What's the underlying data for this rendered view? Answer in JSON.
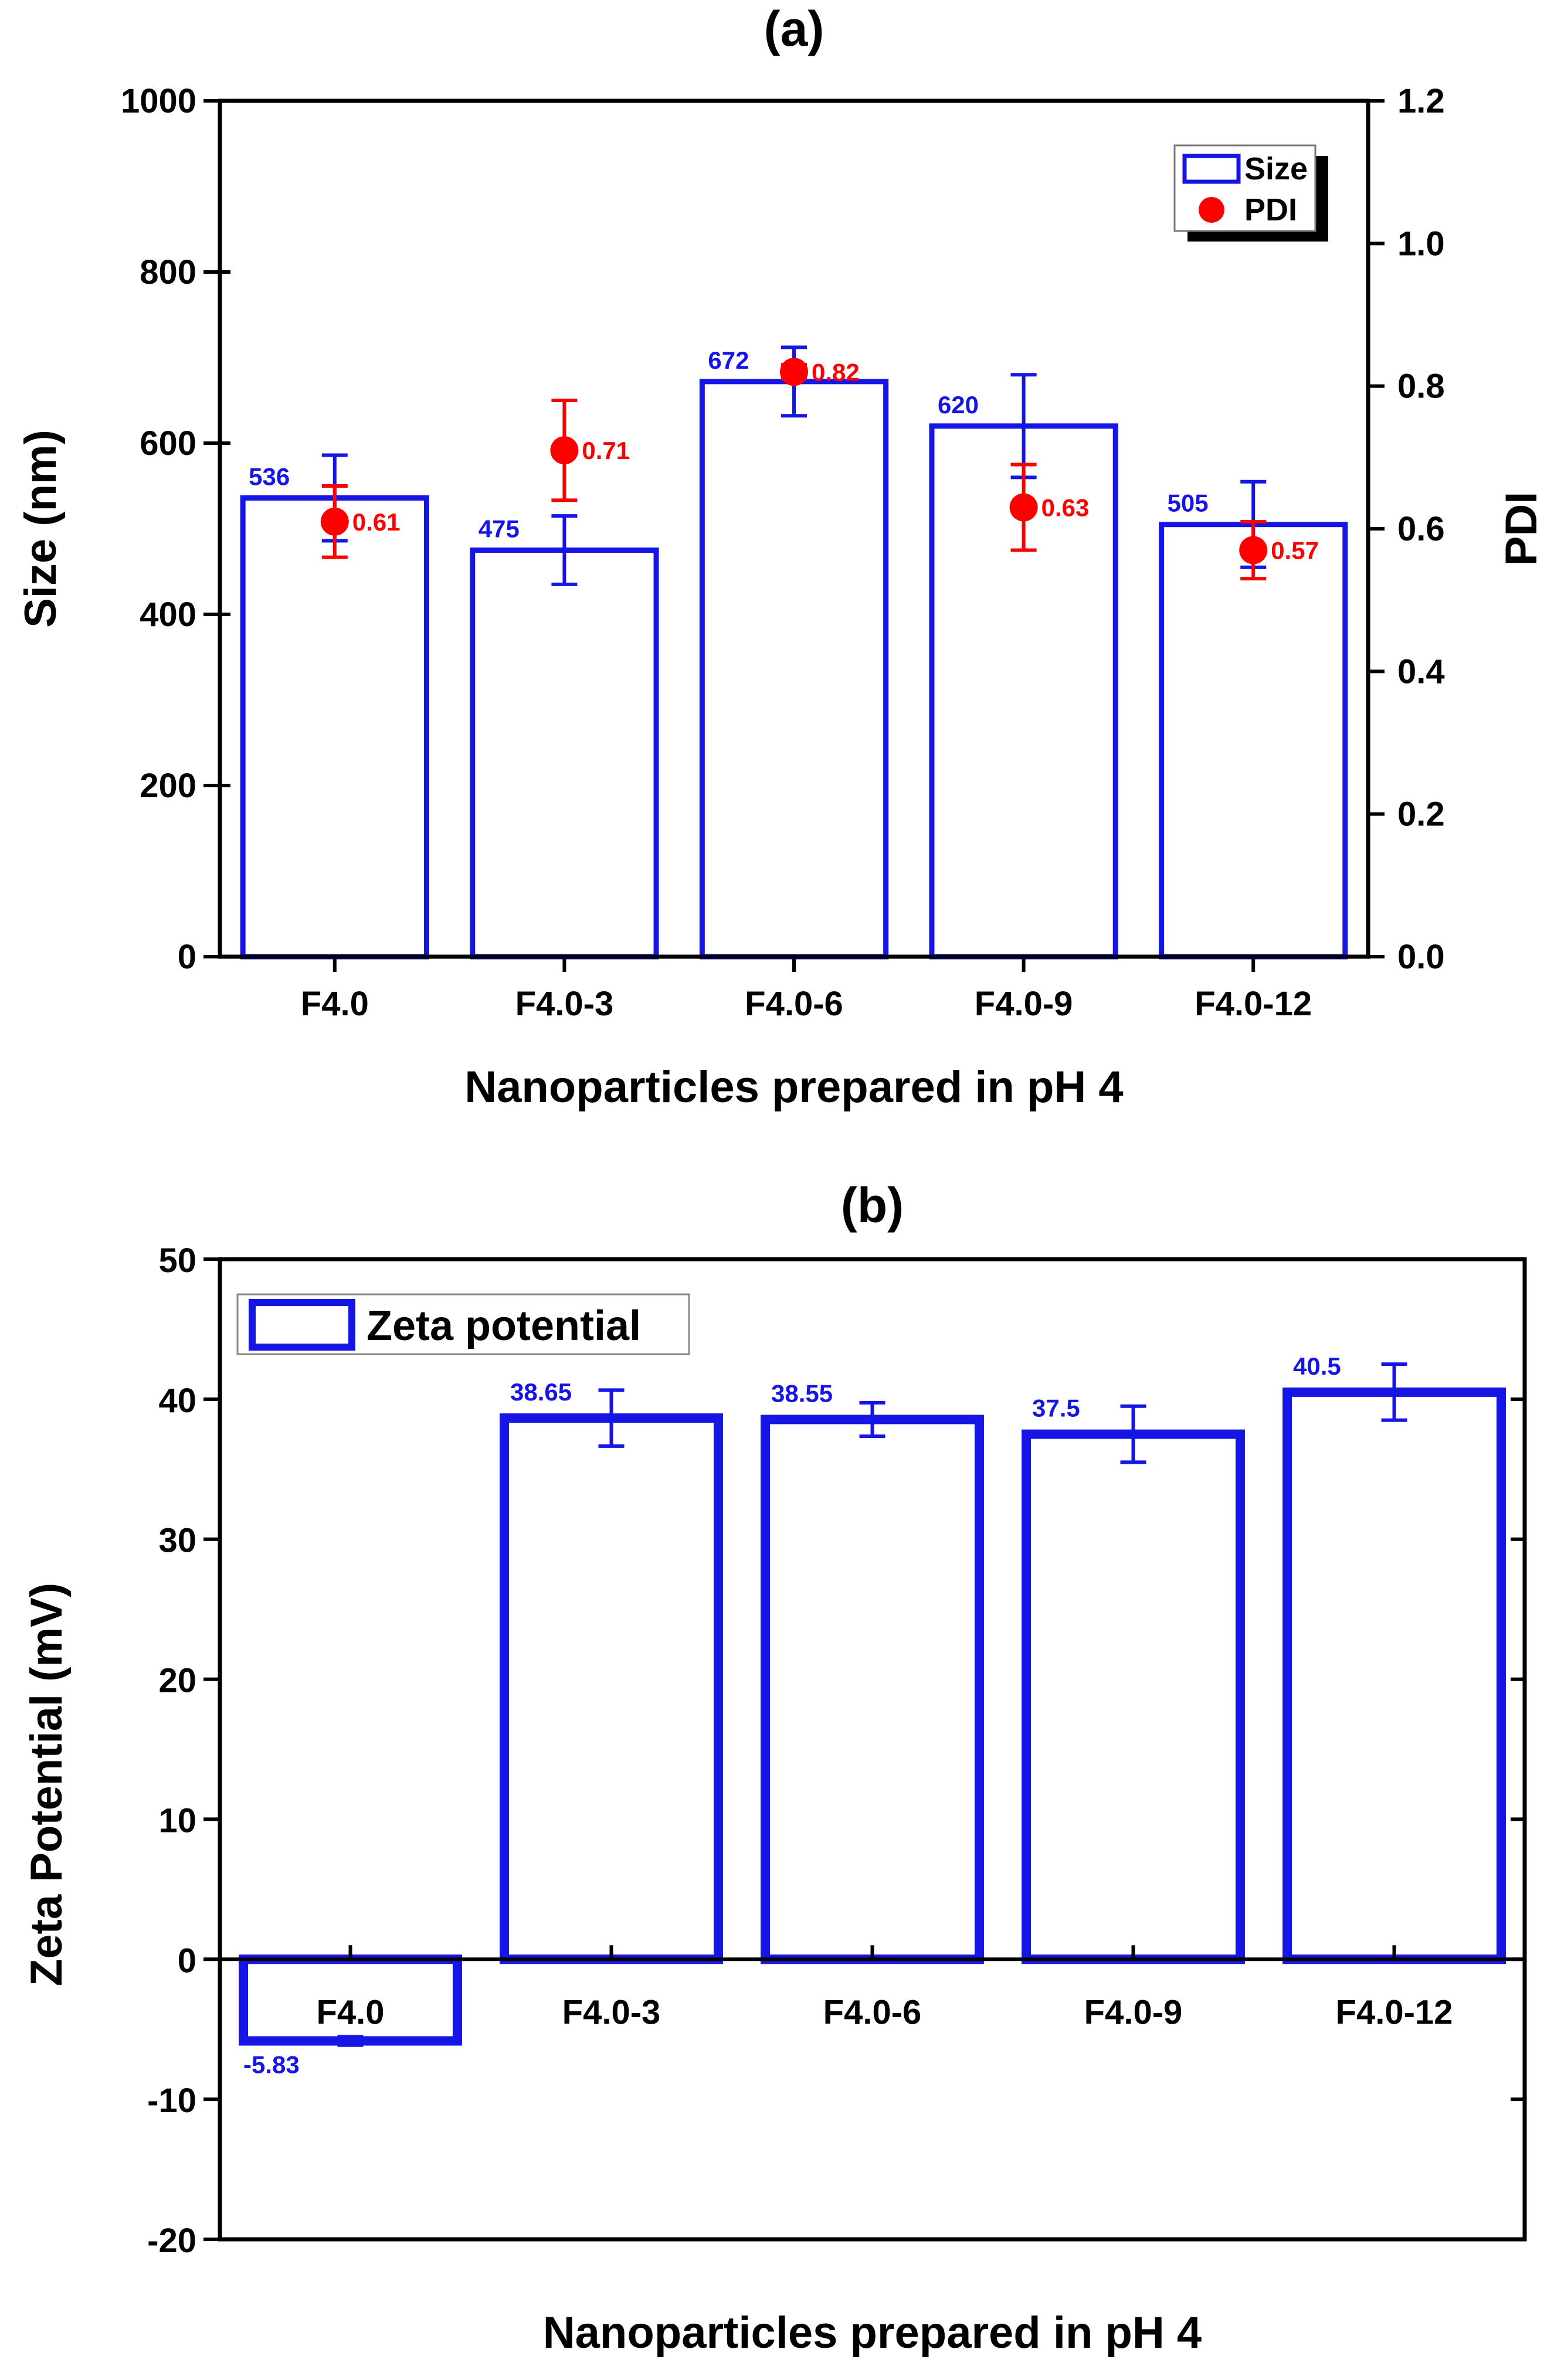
{
  "chart_data": [
    {
      "id": "a",
      "type": "bar",
      "title": "(a)",
      "xlabel": "Nanoparticles prepared in pH 4",
      "ylabel": "Size (nm)",
      "y2label": "PDI",
      "categories": [
        "F4.0",
        "F4.0-3",
        "F4.0-6",
        "F4.0-9",
        "F4.0-12"
      ],
      "ylim": [
        0,
        1000
      ],
      "yticks": [
        0,
        200,
        400,
        600,
        800,
        1000
      ],
      "y2lim": [
        0.0,
        1.2
      ],
      "y2ticks": [
        "0.0",
        "0.2",
        "0.4",
        "0.6",
        "0.8",
        "1.0",
        "1.2"
      ],
      "series": [
        {
          "name": "Size",
          "kind": "bar",
          "color": "#1515e6",
          "values": [
            536,
            475,
            672,
            620,
            505
          ],
          "labels": [
            "536",
            "475",
            "672",
            "620",
            "505"
          ],
          "errors": [
            50,
            40,
            40,
            60,
            50
          ]
        },
        {
          "name": "PDI",
          "kind": "scatter",
          "axis": "y2",
          "color": "#ff0000",
          "values": [
            0.61,
            0.71,
            0.82,
            0.63,
            0.57
          ],
          "labels": [
            "0.61",
            "0.71",
            "0.82",
            "0.63",
            "0.57"
          ],
          "errors": [
            0.05,
            0.07,
            0.01,
            0.06,
            0.04
          ]
        }
      ],
      "legend": {
        "position": "top-right",
        "entries": [
          "Size",
          "PDI"
        ]
      }
    },
    {
      "id": "b",
      "type": "bar",
      "title": "(b)",
      "xlabel": "Nanoparticles prepared in pH 4",
      "ylabel": "Zeta Potential  (mV)",
      "categories": [
        "F4.0",
        "F4.0-3",
        "F4.0-6",
        "F4.0-9",
        "F4.0-12"
      ],
      "ylim": [
        -20,
        50
      ],
      "yticks": [
        -20,
        -10,
        0,
        10,
        20,
        30,
        40,
        50
      ],
      "series": [
        {
          "name": "Zeta potential",
          "kind": "bar",
          "color": "#1515e6",
          "values": [
            -5.83,
            38.65,
            38.55,
            37.5,
            40.5
          ],
          "labels": [
            "-5.83",
            "38.65",
            "38.55",
            "37.5",
            "40.5"
          ],
          "errors": [
            0.3,
            2.0,
            1.2,
            2.0,
            2.0
          ]
        }
      ],
      "legend": {
        "position": "top-left",
        "entries": [
          "Zeta potential"
        ]
      }
    }
  ]
}
